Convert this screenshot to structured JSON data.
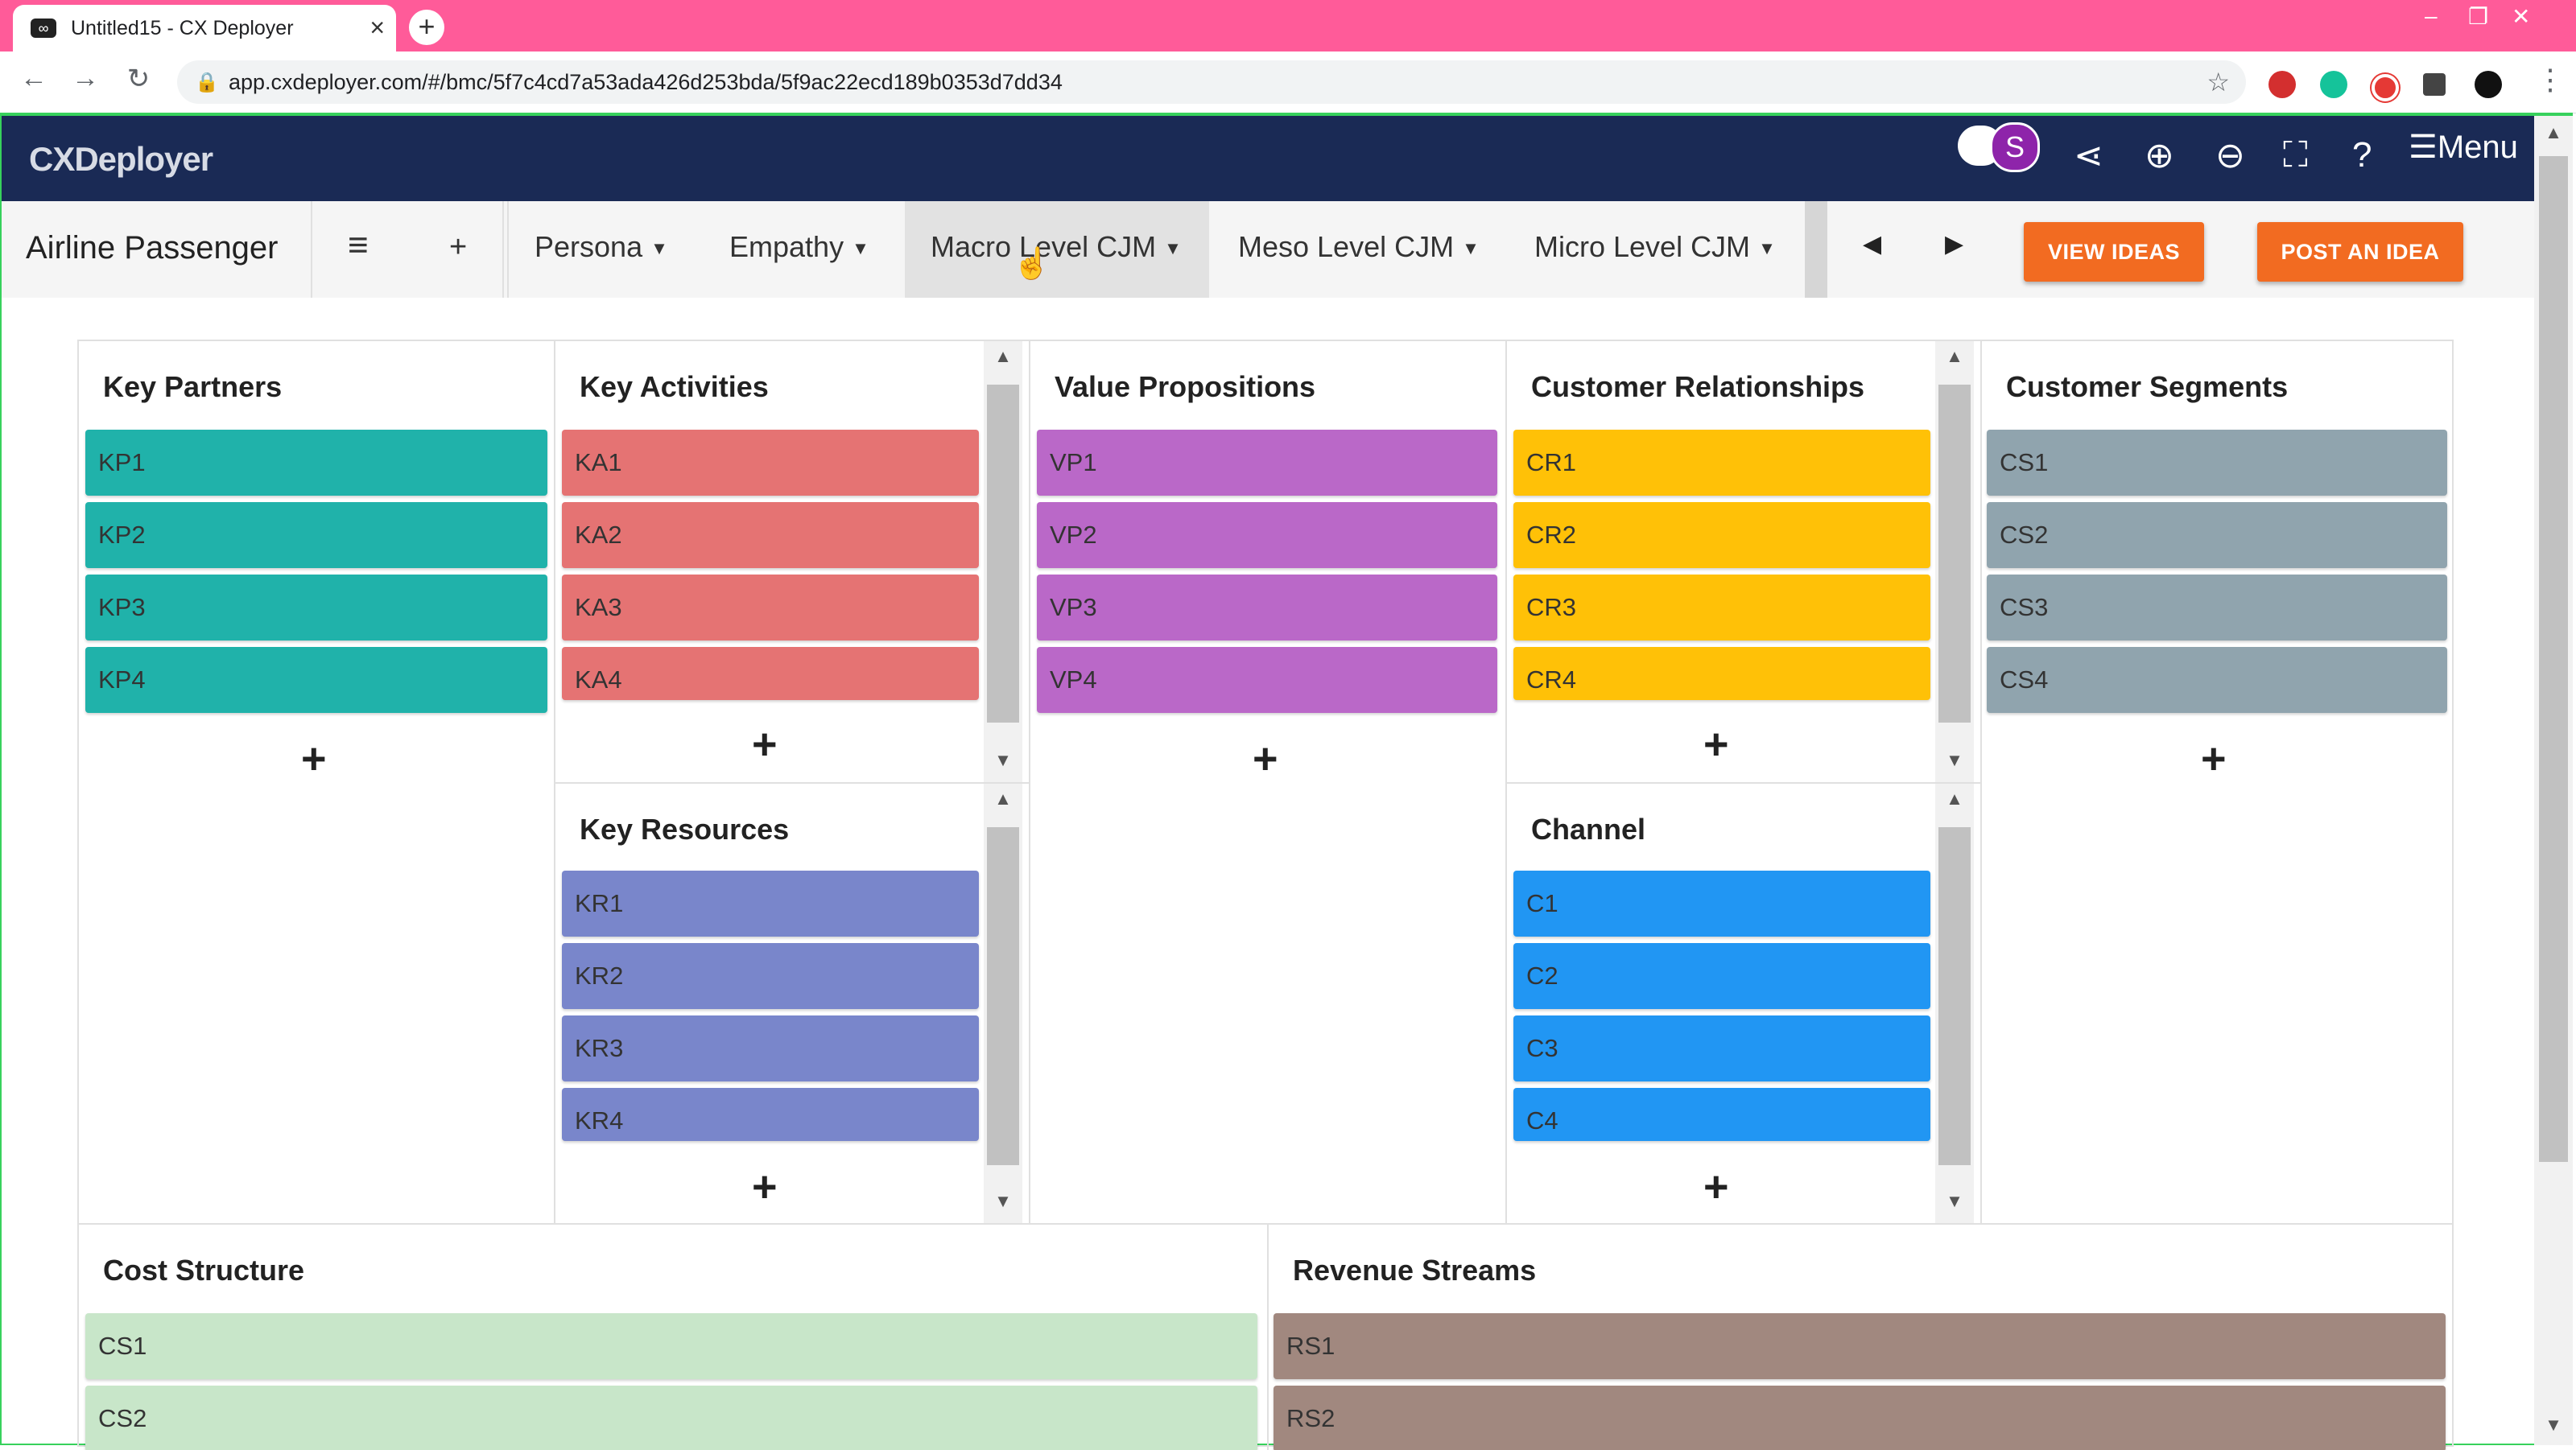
{
  "browser": {
    "tab_title": "Untitled15 - CX Deployer",
    "url": "app.cxdeployer.com/#/bmc/5f7c4cd7a53ada426d253bda/5f9ac22ecd189b0353d7dd34",
    "icons": [
      "back-icon",
      "forward-icon",
      "reload-icon",
      "lock-icon",
      "star-icon",
      "extensions-icon",
      "kebab-icon"
    ]
  },
  "app": {
    "logo": "CXDeployer",
    "avatar_letter": "S",
    "menu_label": "☰Menu"
  },
  "nav": {
    "title": "Airline Passenger",
    "items": [
      {
        "label": "Persona"
      },
      {
        "label": "Empathy"
      },
      {
        "label": "Macro Level CJM"
      },
      {
        "label": "Meso Level CJM"
      },
      {
        "label": "Micro Level CJM"
      }
    ],
    "view_ideas": "VIEW IDEAS",
    "post_idea": "POST AN IDEA"
  },
  "canvas": {
    "key_partners": {
      "title": "Key Partners",
      "cards": [
        "KP1",
        "KP2",
        "KP3",
        "KP4"
      ],
      "color": "#20b2aa"
    },
    "key_activities": {
      "title": "Key Activities",
      "cards": [
        "KA1",
        "KA2",
        "KA3",
        "KA4"
      ],
      "color": "#e57373"
    },
    "key_resources": {
      "title": "Key Resources",
      "cards": [
        "KR1",
        "KR2",
        "KR3",
        "KR4"
      ],
      "color": "#7986cb"
    },
    "value_propositions": {
      "title": "Value Propositions",
      "cards": [
        "VP1",
        "VP2",
        "VP3",
        "VP4"
      ],
      "color": "#ba68c8"
    },
    "customer_relationships": {
      "title": "Customer Relationships",
      "cards": [
        "CR1",
        "CR2",
        "CR3",
        "CR4"
      ],
      "color": "#ffc107"
    },
    "channel": {
      "title": "Channel",
      "cards": [
        "C1",
        "C2",
        "C3",
        "C4"
      ],
      "color": "#2196f3"
    },
    "customer_segments": {
      "title": "Customer Segments",
      "cards": [
        "CS1",
        "CS2",
        "CS3",
        "CS4"
      ],
      "color": "#90a4ae"
    },
    "cost_structure": {
      "title": "Cost Structure",
      "cards": [
        "CS1",
        "CS2"
      ],
      "color": "#c8e6c9"
    },
    "revenue_streams": {
      "title": "Revenue Streams",
      "cards": [
        "RS1",
        "RS2"
      ],
      "color": "#a1887f"
    },
    "plus": "+"
  }
}
